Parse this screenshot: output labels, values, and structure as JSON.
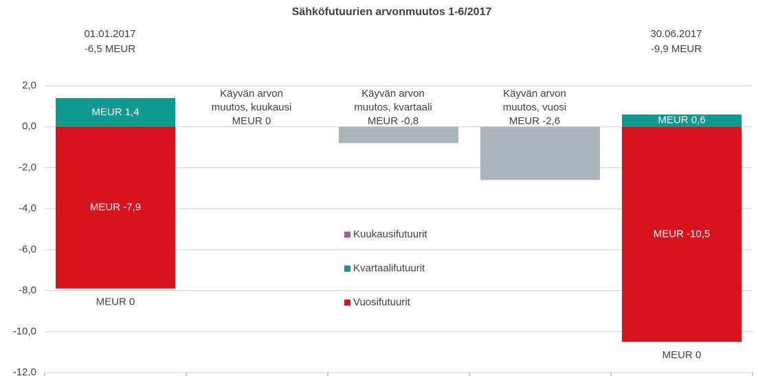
{
  "chart_data": {
    "type": "waterfall",
    "title": "Sähköfutuurien arvonmuutos 1-6/2017",
    "categories": [
      null,
      null,
      null,
      null,
      null
    ],
    "totals": [
      {
        "date": "01.01.2017",
        "label": "-6,5 MEUR"
      },
      null,
      null,
      null,
      {
        "date": "30.06.2017",
        "label": "-9,9 MEUR"
      }
    ],
    "series": [
      {
        "name": "Kuukausifutuurit",
        "color": "#a3608f",
        "values": [
          0,
          null,
          null,
          null,
          0
        ],
        "value_labels": [
          "MEUR 0",
          null,
          null,
          null,
          "MEUR 0"
        ]
      },
      {
        "name": "Kvartaalifutuurit",
        "color": "#0f9a90",
        "values": [
          1.4,
          null,
          null,
          null,
          0.6
        ],
        "value_labels": [
          "MEUR 1,4",
          null,
          null,
          null,
          "MEUR 0,6"
        ]
      },
      {
        "name": "Vuosifutuurit",
        "color": "#d7141e",
        "values": [
          -7.9,
          null,
          null,
          null,
          -10.5
        ],
        "value_labels": [
          "MEUR -7,9",
          null,
          null,
          null,
          "MEUR -10,5"
        ]
      }
    ],
    "changes": {
      "color": "#aab5bb",
      "names": [
        null,
        [
          "Käyvän arvon",
          "muutos, kuukausi"
        ],
        [
          "Käyvän arvon",
          "muutos, kvartaali"
        ],
        [
          "Käyvän arvon",
          "muutos, vuosi"
        ],
        null
      ],
      "values": [
        null,
        0,
        -0.8,
        -2.6,
        null
      ],
      "value_labels": [
        null,
        "MEUR 0",
        "MEUR -0,8",
        "MEUR -2,6",
        null
      ]
    },
    "ylim": [
      -12,
      2
    ],
    "yticks": [
      {
        "value": 2,
        "label": "2,0"
      },
      {
        "value": 0,
        "label": "0,0"
      },
      {
        "value": -2,
        "label": "-2,0"
      },
      {
        "value": -4,
        "label": "-4,0"
      },
      {
        "value": -6,
        "label": "-6,0"
      },
      {
        "value": -8,
        "label": "-8,0"
      },
      {
        "value": -10,
        "label": "-10,0"
      },
      {
        "value": -12,
        "label": "-12,0"
      }
    ],
    "grid": true
  }
}
